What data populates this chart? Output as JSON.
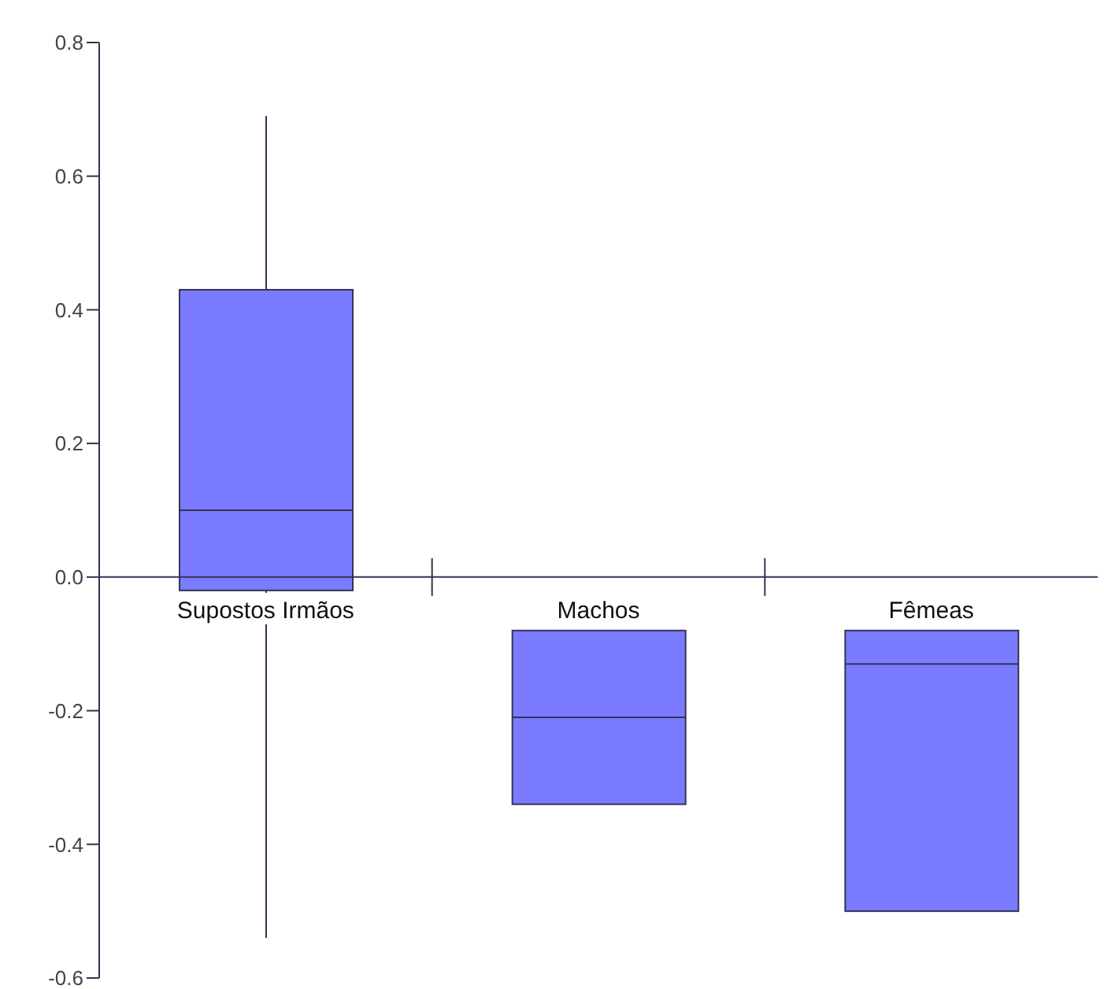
{
  "chart_data": {
    "type": "box",
    "categories": [
      "Supostos Irmãos",
      "Machos",
      "Fêmeas"
    ],
    "boxes": [
      {
        "low": -0.54,
        "q1": -0.02,
        "median": 0.1,
        "q3": 0.43,
        "high": 0.69
      },
      {
        "low": -0.34,
        "q1": -0.34,
        "median": -0.21,
        "q3": -0.08,
        "high": -0.08
      },
      {
        "low": -0.5,
        "q1": -0.5,
        "median": -0.13,
        "q3": -0.08,
        "high": -0.08
      }
    ],
    "color": "#7b7bff",
    "ylim": [
      -0.6,
      0.8
    ],
    "yticks": [
      {
        "value": -0.6,
        "label": "-0.6"
      },
      {
        "value": -0.4,
        "label": "-0.4"
      },
      {
        "value": -0.2,
        "label": "-0.2"
      },
      {
        "value": 0,
        "label": "0.0"
      },
      {
        "value": 0.2,
        "label": "0.2"
      },
      {
        "value": 0.4,
        "label": "0.4"
      },
      {
        "value": 0.6,
        "label": "0.6"
      },
      {
        "value": 0.8,
        "label": "0.8"
      }
    ]
  }
}
